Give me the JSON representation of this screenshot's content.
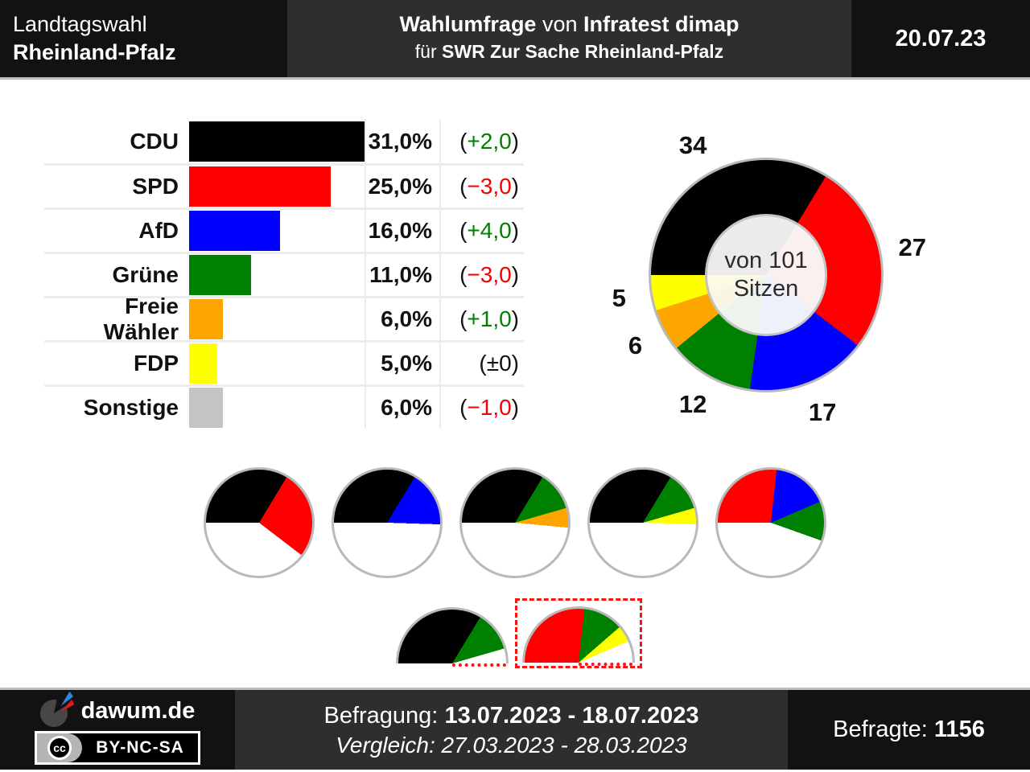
{
  "header": {
    "left_line1": "Landtagswahl",
    "left_line2": "Rheinland-Pfalz",
    "center_l1_bold1": "Wahlumfrage",
    "center_l1_mid": " von ",
    "center_l1_bold2": "Infratest dimap",
    "center_l2_pre": "für ",
    "center_l2_bold": "SWR Zur Sache Rheinland-Pfalz",
    "date": "20.07.23"
  },
  "chart_data": [
    {
      "type": "bar",
      "orientation": "horizontal",
      "categories": [
        "CDU",
        "SPD",
        "AfD",
        "Grüne",
        "Freie Wähler",
        "FDP",
        "Sonstige"
      ],
      "values": [
        31.0,
        25.0,
        16.0,
        11.0,
        6.0,
        5.0,
        6.0
      ],
      "value_labels": [
        "31,0%",
        "25,0%",
        "16,0%",
        "11,0%",
        "6,0%",
        "5,0%",
        "6,0%"
      ],
      "changes": [
        {
          "label": "+2,0",
          "direction": "up"
        },
        {
          "label": "−3,0",
          "direction": "down"
        },
        {
          "label": "+4,0",
          "direction": "up"
        },
        {
          "label": "−3,0",
          "direction": "down"
        },
        {
          "label": "+1,0",
          "direction": "up"
        },
        {
          "label": "±0",
          "direction": "zero"
        },
        {
          "label": "−1,0",
          "direction": "down"
        }
      ],
      "bar_colors": [
        "#000000",
        "#ff0000",
        "#0000ff",
        "#008000",
        "#ffa500",
        "#ffff00",
        "#c4c4c4"
      ],
      "xlim": [
        0,
        31
      ],
      "grid": true
    },
    {
      "type": "pie",
      "subtype": "donut",
      "total": 101,
      "start_angle_deg": 270,
      "center_line1": "von 101",
      "center_line2": "Sitzen",
      "segments": [
        {
          "party": "CDU",
          "seats": 34,
          "color": "#000000",
          "center_tint": "#ebebeb"
        },
        {
          "party": "SPD",
          "seats": 27,
          "color": "#ff0000",
          "center_tint": "#fbf0f0"
        },
        {
          "party": "AfD",
          "seats": 17,
          "color": "#0000ff",
          "center_tint": "#eef0fb"
        },
        {
          "party": "Grüne",
          "seats": 12,
          "color": "#008000",
          "center_tint": "#edf3ed"
        },
        {
          "party": "Freie Wähler",
          "seats": 6,
          "color": "#ffa500",
          "center_tint": "#fbf5e6"
        },
        {
          "party": "FDP",
          "seats": 5,
          "color": "#ffff00",
          "center_tint": "#fbfae6"
        }
      ]
    },
    {
      "type": "pie",
      "subtype": "coalition-majority-charts",
      "total": 101,
      "start_angle_deg": 270,
      "coalitions": [
        {
          "parties": [
            "CDU",
            "SPD"
          ],
          "seats": [
            34,
            27
          ],
          "colors": [
            "#000000",
            "#ff0000"
          ],
          "shape": "circle",
          "majority": true
        },
        {
          "parties": [
            "CDU",
            "AfD"
          ],
          "seats": [
            34,
            17
          ],
          "colors": [
            "#000000",
            "#0000ff"
          ],
          "shape": "circle",
          "majority": true
        },
        {
          "parties": [
            "CDU",
            "Grüne",
            "Freie Wähler"
          ],
          "seats": [
            34,
            12,
            6
          ],
          "colors": [
            "#000000",
            "#008000",
            "#ffa500"
          ],
          "shape": "circle",
          "majority": true
        },
        {
          "parties": [
            "CDU",
            "Grüne",
            "FDP"
          ],
          "seats": [
            34,
            12,
            5
          ],
          "colors": [
            "#000000",
            "#008000",
            "#ffff00"
          ],
          "shape": "circle",
          "majority": true
        },
        {
          "parties": [
            "SPD",
            "AfD",
            "Grüne"
          ],
          "seats": [
            27,
            17,
            12
          ],
          "colors": [
            "#ff0000",
            "#0000ff",
            "#008000"
          ],
          "shape": "circle",
          "majority": true
        },
        {
          "parties": [
            "CDU",
            "Grüne"
          ],
          "seats": [
            34,
            12
          ],
          "colors": [
            "#000000",
            "#008000"
          ],
          "shape": "semicircle",
          "majority": false
        },
        {
          "parties": [
            "SPD",
            "Grüne",
            "FDP"
          ],
          "seats": [
            27,
            12,
            5
          ],
          "colors": [
            "#ff0000",
            "#008000",
            "#ffff00"
          ],
          "shape": "semicircle",
          "majority": false,
          "highlighted": true
        }
      ]
    }
  ],
  "footer": {
    "brand": "dawum.de",
    "cc_icon": "cc",
    "license": "BY-NC-SA",
    "survey_label": "Befragung: ",
    "survey_dates": "13.07.2023 - 18.07.2023",
    "comparison_line": "Vergleich: 27.03.2023 - 28.03.2023",
    "respondents_label": "Befragte: ",
    "respondents_value": "1156"
  }
}
